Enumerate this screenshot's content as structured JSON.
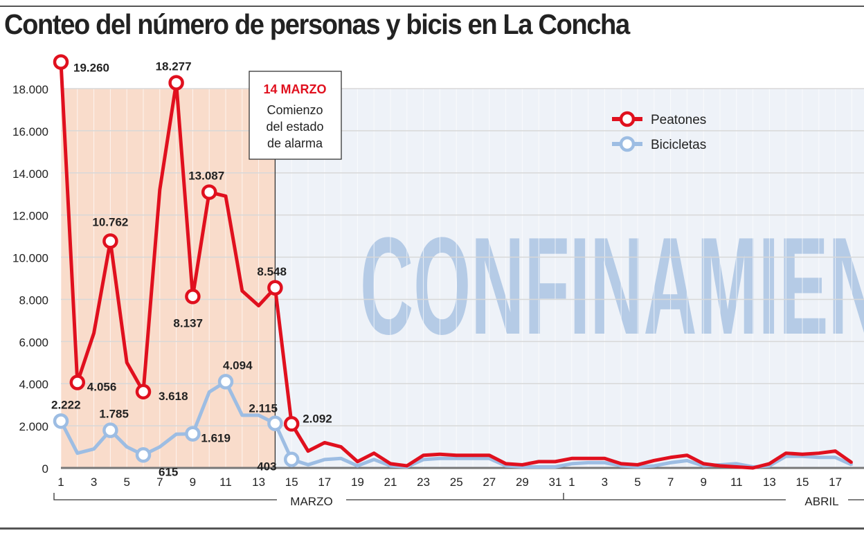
{
  "chart_data": {
    "type": "line",
    "title": "Conteo del número de personas y bicis en La Concha",
    "xlabel": "",
    "ylabel": "",
    "ylim": [
      0,
      18000
    ],
    "yticks": [
      "0",
      "2.000",
      "4.000",
      "6.000",
      "8.000",
      "10.000",
      "12.000",
      "14.000",
      "16.000",
      "18.000"
    ],
    "ytick_values": [
      0,
      2000,
      4000,
      6000,
      8000,
      10000,
      12000,
      14000,
      16000,
      18000
    ],
    "months": [
      {
        "label": "MARZO",
        "days": 31
      },
      {
        "label": "ABRIL",
        "days": 18
      }
    ],
    "xticks_marzo": [
      "1",
      "3",
      "5",
      "7",
      "9",
      "11",
      "13",
      "15",
      "17",
      "19",
      "21",
      "23",
      "25",
      "27",
      "29",
      "31"
    ],
    "xticks_abril": [
      "1",
      "3",
      "5",
      "7",
      "9",
      "11",
      "13",
      "15",
      "17"
    ],
    "watermark": "CONFINAMIENTO",
    "annotation": {
      "date": "14 MARZO",
      "text": [
        "Comienzo",
        "del estado",
        "de alarma"
      ],
      "day_index": 13
    },
    "legend_position": "top-right",
    "series": [
      {
        "name": "Peatones",
        "color": "#e0101e",
        "values": [
          19260,
          4056,
          6400,
          10762,
          5000,
          3618,
          13200,
          18277,
          8137,
          13087,
          12900,
          8400,
          7700,
          8548,
          2092,
          800,
          1200,
          1000,
          300,
          700,
          200,
          100,
          600,
          650,
          600,
          600,
          600,
          200,
          150,
          300,
          300,
          450,
          450,
          450,
          200,
          150,
          350,
          500,
          600,
          200,
          100,
          50,
          0,
          200,
          700,
          650,
          700,
          800,
          250
        ],
        "labels": [
          {
            "i": 0,
            "text": "19.260"
          },
          {
            "i": 1,
            "text": "4.056"
          },
          {
            "i": 3,
            "text": "10.762"
          },
          {
            "i": 5,
            "text": "3.618"
          },
          {
            "i": 7,
            "text": "18.277"
          },
          {
            "i": 8,
            "text": "8.137"
          },
          {
            "i": 9,
            "text": "13.087"
          },
          {
            "i": 13,
            "text": "8.548"
          },
          {
            "i": 14,
            "text": "2.092"
          }
        ]
      },
      {
        "name": "Bicicletas",
        "color": "#9dbde3",
        "values": [
          2222,
          700,
          900,
          1785,
          1000,
          615,
          1000,
          1600,
          1619,
          3600,
          4094,
          2500,
          2500,
          2115,
          403,
          150,
          400,
          450,
          100,
          400,
          100,
          50,
          400,
          450,
          450,
          450,
          450,
          100,
          50,
          50,
          50,
          200,
          250,
          250,
          100,
          50,
          100,
          250,
          350,
          100,
          150,
          200,
          50,
          100,
          550,
          550,
          500,
          500,
          150
        ],
        "labels": [
          {
            "i": 0,
            "text": "2.222"
          },
          {
            "i": 3,
            "text": "1.785"
          },
          {
            "i": 5,
            "text": "615"
          },
          {
            "i": 8,
            "text": "1.619"
          },
          {
            "i": 10,
            "text": "4.094"
          },
          {
            "i": 13,
            "text": "2.115"
          },
          {
            "i": 14,
            "text": "403"
          }
        ]
      }
    ]
  }
}
